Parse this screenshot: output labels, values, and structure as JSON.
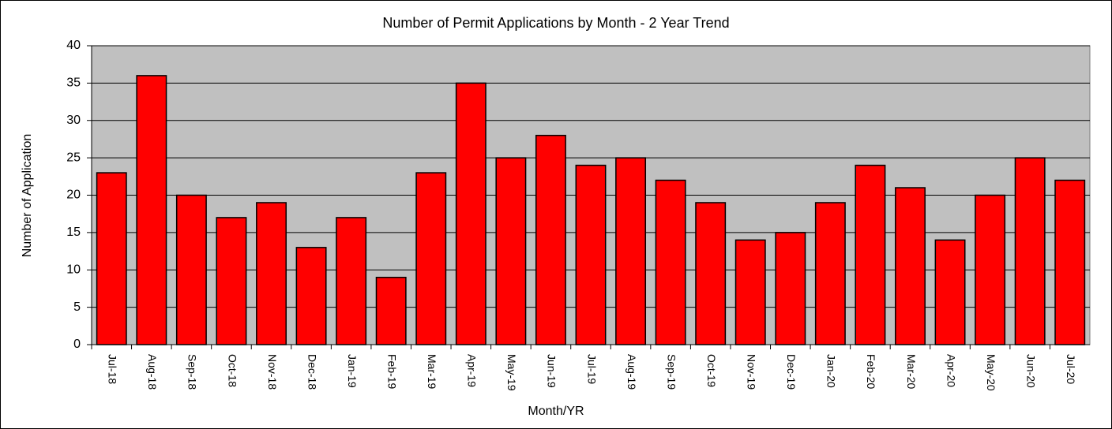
{
  "chart_data": {
    "type": "bar",
    "title": "Number of Permit Applications by Month - 2 Year Trend",
    "x_label": "Month/YR",
    "y_label": "Number of Application",
    "categories": [
      "Jul-18",
      "Aug-18",
      "Sep-18",
      "Oct-18",
      "Nov-18",
      "Dec-18",
      "Jan-19",
      "Feb-19",
      "Mar-19",
      "Apr-19",
      "May-19",
      "Jun-19",
      "Jul-19",
      "Aug-19",
      "Sep-19",
      "Oct-19",
      "Nov-19",
      "Dec-19",
      "Jan-20",
      "Feb-20",
      "Mar-20",
      "Apr-20",
      "May-20",
      "Jun-20",
      "Jul-20"
    ],
    "values": [
      23,
      36,
      20,
      17,
      19,
      13,
      17,
      9,
      23,
      35,
      25,
      28,
      24,
      25,
      22,
      19,
      14,
      15,
      19,
      24,
      21,
      14,
      20,
      25,
      22
    ],
    "color": "#ff0000",
    "plot_background": "#c0c0c0",
    "ylim": [
      0,
      40
    ],
    "yticks": [
      0,
      5,
      10,
      15,
      20,
      25,
      30,
      35,
      40
    ],
    "grid": true
  }
}
